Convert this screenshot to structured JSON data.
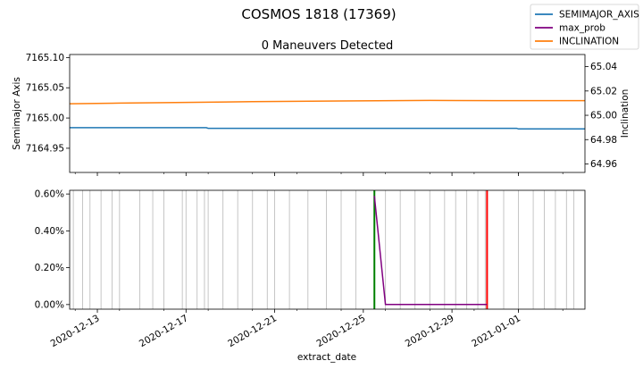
{
  "figure": {
    "suptitle": "COSMOS 1818 (17369)"
  },
  "chart_data": [
    {
      "type": "line",
      "title": "0 Maneuvers Detected",
      "xlabel": "",
      "ylabel_left": "Semimajor Axis",
      "ylabel_right": "Inclination",
      "ylim_left": [
        7164.91,
        7165.105
      ],
      "ylim_right": [
        64.953,
        65.05
      ],
      "yticks_left": [
        "7164.95",
        "7165.00",
        "7165.05",
        "7165.10"
      ],
      "yticks_right": [
        "64.96",
        "64.98",
        "65.00",
        "65.02",
        "65.04"
      ],
      "xlim": [
        "2020-12-11T18:00",
        "2021-01-04T00:00"
      ],
      "grid": false,
      "series": [
        {
          "name": "SEMIMAJOR_AXIS",
          "axis": "left",
          "color": "#1f77b4",
          "x": [
            "2020-12-11T18:00",
            "2020-12-17T22:00",
            "2020-12-18T00:00",
            "2020-12-31T22:00",
            "2021-01-01T00:00",
            "2021-01-04T00:00"
          ],
          "y": [
            7164.984,
            7164.984,
            7164.983,
            7164.983,
            7164.982,
            7164.982
          ]
        },
        {
          "name": "INCLINATION",
          "axis": "right",
          "color": "#ff7f0e",
          "x": [
            "2020-12-11T18:00",
            "2020-12-14T00:00",
            "2020-12-17T00:00",
            "2020-12-20T00:00",
            "2020-12-24T00:00",
            "2020-12-28T00:00",
            "2020-12-31T00:00",
            "2021-01-04T00:00"
          ],
          "y": [
            65.0095,
            65.01,
            65.0106,
            65.0112,
            65.0118,
            65.0122,
            65.0121,
            65.0121
          ]
        }
      ]
    },
    {
      "type": "line",
      "xlabel": "extract_date",
      "ylabel": "",
      "ylim": [
        -0.00025,
        0.0062
      ],
      "yticks": [
        "0.00%",
        "0.20%",
        "0.40%",
        "0.60%"
      ],
      "ytick_values": [
        0,
        0.002,
        0.004,
        0.006
      ],
      "xlim": [
        "2020-12-11T18:00",
        "2021-01-04T00:00"
      ],
      "xticks": [
        "2020-12-13",
        "2020-12-17",
        "2020-12-21",
        "2020-12-25",
        "2020-12-29",
        "2021-01-01"
      ],
      "grid": false,
      "series": [
        {
          "name": "max_prob",
          "color": "#800080",
          "x": [
            "2020-12-25T12:00",
            "2020-12-26T00:00",
            "2020-12-30T14:00"
          ],
          "y": [
            0.0059,
            0.0,
            0.0
          ]
        }
      ],
      "vlines_green": {
        "color": "#008000",
        "x": [
          "2020-12-25T12:00"
        ]
      },
      "vlines_red": {
        "color": "#ff0000",
        "x": [
          "2020-12-30T14:00"
        ]
      },
      "vlines_gray": {
        "color": "#c0c0c0",
        "x": [
          "2020-12-11T22:00",
          "2020-12-12T08:00",
          "2020-12-12T16:00",
          "2020-12-13T04:00",
          "2020-12-13T16:00",
          "2020-12-14T00:00",
          "2020-12-14T22:00",
          "2020-12-15T12:00",
          "2020-12-16T00:00",
          "2020-12-16T20:00",
          "2020-12-17T00:00",
          "2020-12-17T12:00",
          "2020-12-17T20:00",
          "2020-12-18T00:00",
          "2020-12-18T16:00",
          "2020-12-19T08:00",
          "2020-12-20T00:00",
          "2020-12-20T16:00",
          "2020-12-21T00:00",
          "2020-12-21T16:00",
          "2020-12-22T12:00",
          "2020-12-23T08:00",
          "2020-12-24T00:00",
          "2020-12-24T16:00",
          "2020-12-26T00:00",
          "2020-12-26T16:00",
          "2020-12-27T08:00",
          "2020-12-28T00:00",
          "2020-12-28T16:00",
          "2020-12-29T04:00",
          "2020-12-29T16:00",
          "2020-12-30T04:00",
          "2020-12-30T12:00",
          "2020-12-31T08:00",
          "2021-01-01T00:00",
          "2021-01-01T16:00",
          "2021-01-02T04:00",
          "2021-01-02T16:00",
          "2021-01-03T04:00",
          "2021-01-03T12:00"
        ]
      }
    }
  ],
  "legend": {
    "placement": "top-right",
    "entries": [
      {
        "label": "SEMIMAJOR_AXIS",
        "color": "#1f77b4"
      },
      {
        "label": "max_prob",
        "color": "#800080"
      },
      {
        "label": "INCLINATION",
        "color": "#ff7f0e"
      }
    ]
  }
}
